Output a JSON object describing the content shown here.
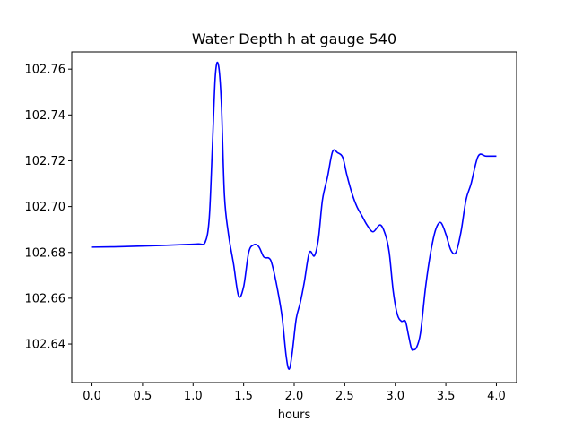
{
  "chart_data": {
    "type": "line",
    "title": "Water Depth h at gauge 540",
    "xlabel": "hours",
    "ylabel": "",
    "xlim": [
      -0.2,
      4.2
    ],
    "ylim": [
      102.6232,
      102.7675
    ],
    "xticks": [
      0.0,
      0.5,
      1.0,
      1.5,
      2.0,
      2.5,
      3.0,
      3.5,
      4.0
    ],
    "xtick_labels": [
      "0.0",
      "0.5",
      "1.0",
      "1.5",
      "2.0",
      "2.5",
      "3.0",
      "3.5",
      "4.0"
    ],
    "yticks": [
      102.64,
      102.66,
      102.68,
      102.7,
      102.72,
      102.74,
      102.76
    ],
    "ytick_labels": [
      "102.64",
      "102.66",
      "102.68",
      "102.70",
      "102.72",
      "102.74",
      "102.76"
    ],
    "grid": false,
    "series": [
      {
        "color": "#0000ff",
        "x": [
          0.0,
          0.3,
          0.6,
          0.9,
          1.05,
          1.12,
          1.16,
          1.19,
          1.22,
          1.25,
          1.28,
          1.31,
          1.35,
          1.4,
          1.45,
          1.5,
          1.55,
          1.6,
          1.65,
          1.7,
          1.75,
          1.78,
          1.83,
          1.88,
          1.92,
          1.95,
          1.98,
          2.02,
          2.06,
          2.1,
          2.15,
          2.2,
          2.24,
          2.28,
          2.33,
          2.38,
          2.43,
          2.48,
          2.52,
          2.57,
          2.62,
          2.67,
          2.72,
          2.78,
          2.85,
          2.9,
          2.94,
          2.98,
          3.02,
          3.06,
          3.1,
          3.13,
          3.16,
          3.18,
          3.21,
          3.25,
          3.3,
          3.35,
          3.4,
          3.45,
          3.5,
          3.55,
          3.6,
          3.65,
          3.7,
          3.75,
          3.82,
          3.9,
          4.0
        ],
        "y": [
          102.6823,
          102.6825,
          102.6829,
          102.6834,
          102.6837,
          102.6845,
          102.695,
          102.725,
          102.757,
          102.762,
          102.745,
          102.705,
          102.688,
          102.675,
          102.661,
          102.665,
          102.68,
          102.6833,
          102.6825,
          102.678,
          102.6775,
          102.675,
          102.665,
          102.652,
          102.635,
          102.629,
          102.636,
          102.651,
          102.658,
          102.667,
          102.68,
          102.6785,
          102.686,
          102.703,
          102.713,
          102.724,
          102.7235,
          102.7215,
          102.714,
          102.706,
          102.7,
          102.696,
          102.692,
          102.689,
          102.692,
          102.688,
          102.68,
          102.663,
          102.653,
          102.65,
          102.65,
          102.644,
          102.638,
          102.6375,
          102.6385,
          102.645,
          102.665,
          102.68,
          102.69,
          102.693,
          102.688,
          102.681,
          102.68,
          102.689,
          102.703,
          102.71,
          102.722,
          102.722,
          102.722
        ]
      }
    ]
  }
}
